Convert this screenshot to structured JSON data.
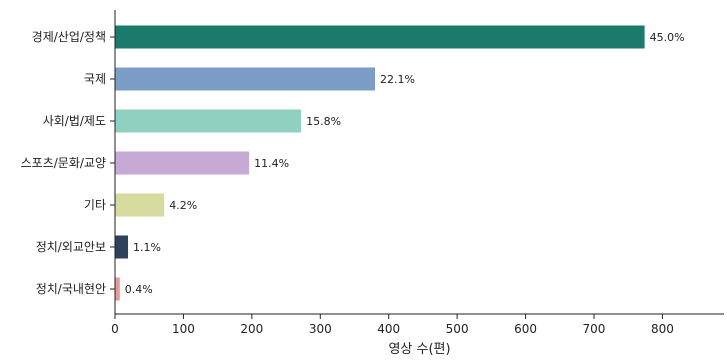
{
  "chart_data": {
    "type": "bar",
    "orientation": "horizontal",
    "xlabel": "영상 수(편)",
    "ylabel": "",
    "title": "",
    "xlim": [
      0,
      890
    ],
    "xticks": [
      0,
      100,
      200,
      300,
      400,
      500,
      600,
      700,
      800
    ],
    "grid": false,
    "categories": [
      "경제/산업/정책",
      "국제",
      "사회/법/제도",
      "스포츠/문화/교양",
      "기타",
      "정치/외교안보",
      "정치/국내현안"
    ],
    "values": [
      774,
      380,
      272,
      196,
      72,
      19,
      7
    ],
    "labels": [
      "45.0%",
      "22.1%",
      "15.8%",
      "11.4%",
      "4.2%",
      "1.1%",
      "0.4%"
    ],
    "colors": [
      "#1a7a6b",
      "#7b9dc6",
      "#90d0c0",
      "#c7a9d6",
      "#d6dba0",
      "#2c435a",
      "#e59a9a"
    ]
  }
}
